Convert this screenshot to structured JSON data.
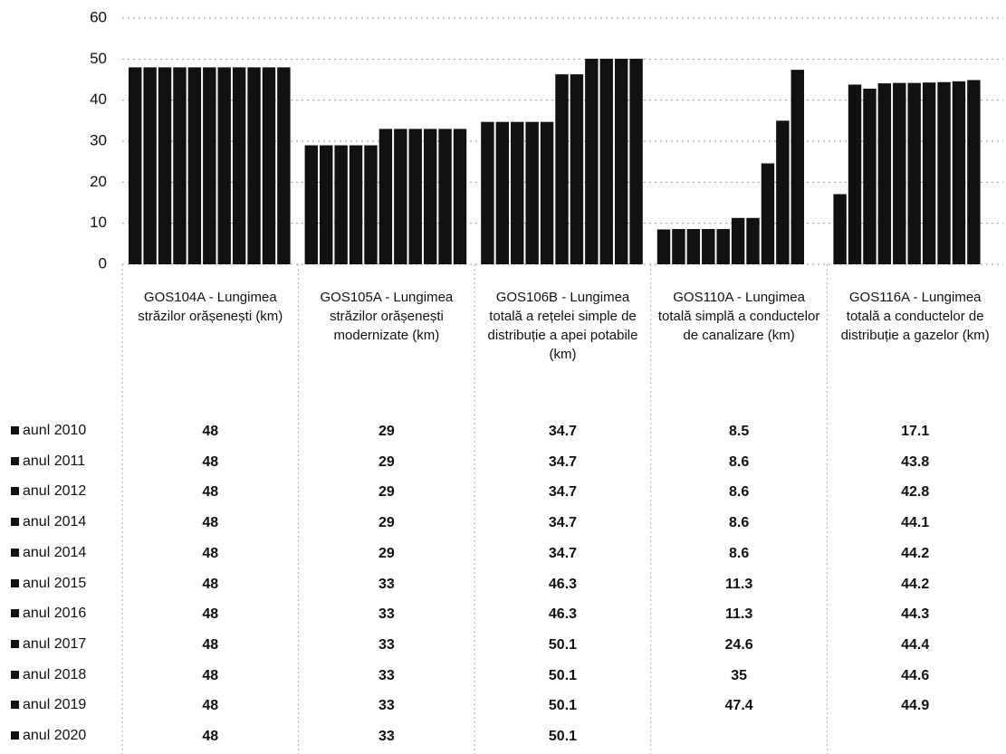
{
  "chart_data": {
    "type": "bar",
    "categories": [
      "GOS104A - Lungimea străzilor orășenești (km)",
      "GOS105A - Lungimea străzilor orășenești modernizate (km)",
      "GOS106B - Lungimea totală a rețelei simple de distribuție a apei potabile (km)",
      "GOS110A - Lungimea totală simplă a conductelor de canalizare (km)",
      "GOS116A - Lungimea totală a conductelor de distribuție a gazelor (km)"
    ],
    "series": [
      {
        "name": "aunl 2010",
        "color": "#111111",
        "values": [
          48,
          29,
          34.7,
          8.5,
          17.1
        ]
      },
      {
        "name": "anul 2011",
        "color": "#111111",
        "values": [
          48,
          29,
          34.7,
          8.6,
          43.8
        ]
      },
      {
        "name": "anul 2012",
        "color": "#111111",
        "values": [
          48,
          29,
          34.7,
          8.6,
          42.8
        ]
      },
      {
        "name": "anul 2014",
        "color": "#111111",
        "values": [
          48,
          29,
          34.7,
          8.6,
          44.1
        ]
      },
      {
        "name": "anul 2014",
        "color": "#111111",
        "values": [
          48,
          29,
          34.7,
          8.6,
          44.2
        ]
      },
      {
        "name": "anul 2015",
        "color": "#111111",
        "values": [
          48,
          33,
          46.3,
          11.3,
          44.2
        ]
      },
      {
        "name": "anul 2016",
        "color": "#111111",
        "values": [
          48,
          33,
          46.3,
          11.3,
          44.3
        ]
      },
      {
        "name": "anul 2017",
        "color": "#111111",
        "values": [
          48,
          33,
          50.1,
          24.6,
          44.4
        ]
      },
      {
        "name": "anul 2018",
        "color": "#111111",
        "values": [
          48,
          33,
          50.1,
          35,
          44.6
        ]
      },
      {
        "name": "anul 2019",
        "color": "#111111",
        "values": [
          48,
          33,
          50.1,
          47.4,
          44.9
        ]
      },
      {
        "name": "anul 2020",
        "color": "#111111",
        "values": [
          48,
          33,
          50.1,
          null,
          null
        ]
      }
    ],
    "ylim": [
      0,
      60
    ],
    "yticks": [
      0,
      10,
      20,
      30,
      40,
      50,
      60
    ],
    "grid": true
  }
}
